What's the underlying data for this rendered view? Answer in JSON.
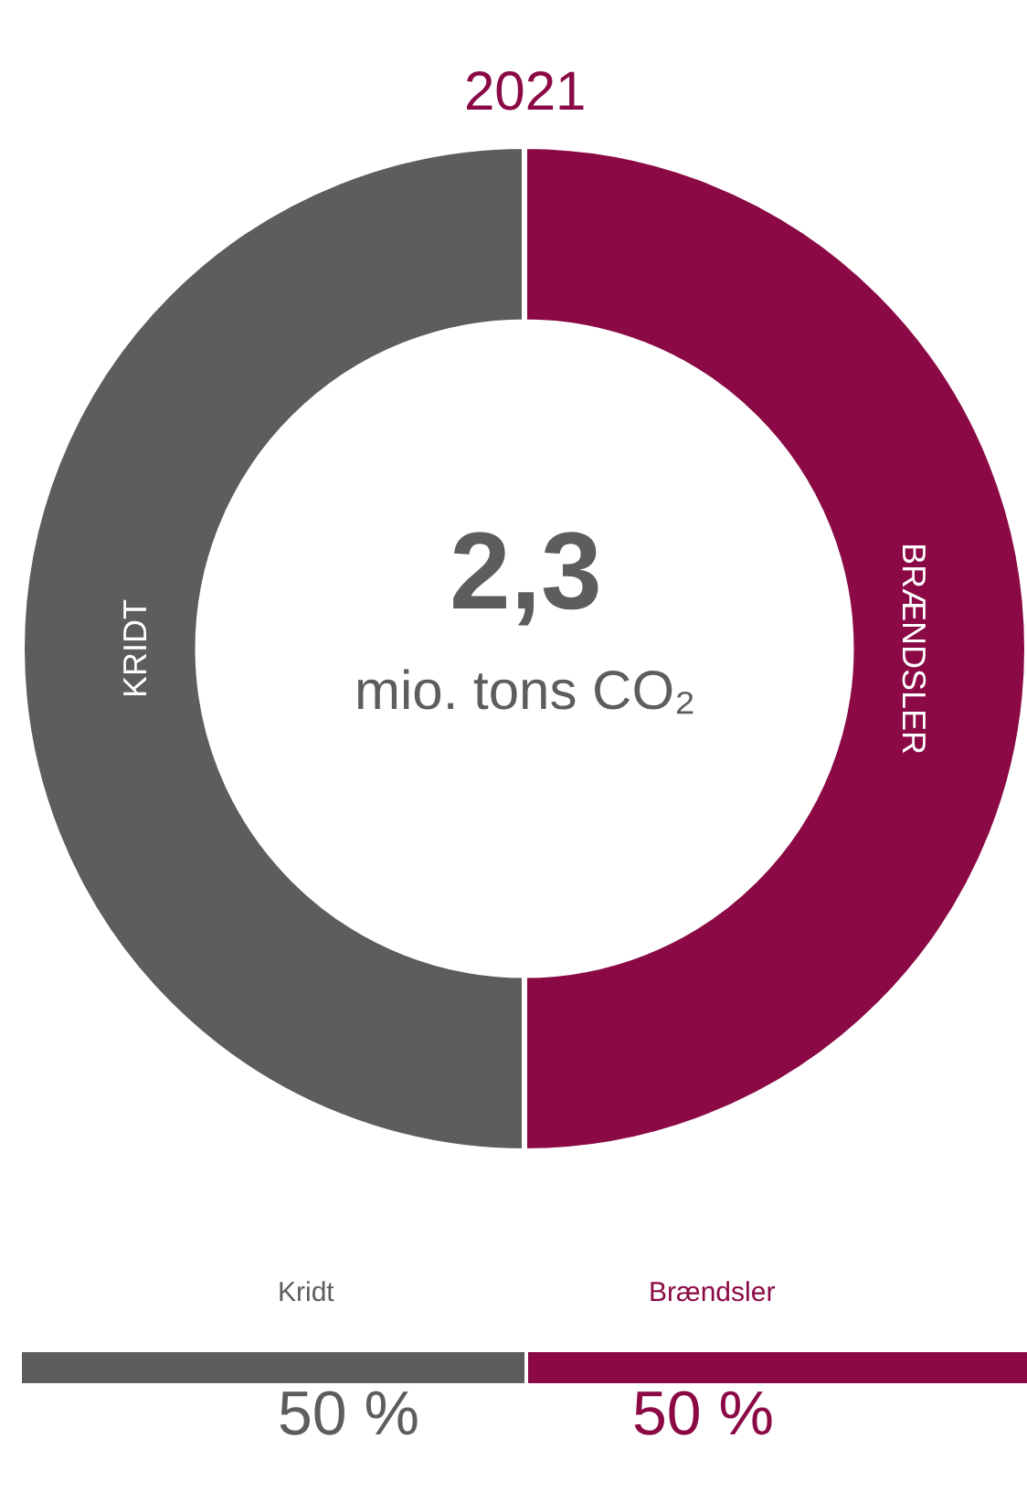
{
  "chart_data": {
    "type": "donut",
    "title": "2021",
    "categories": [
      "Kridt",
      "Brændsler"
    ],
    "values": [
      50,
      50
    ],
    "colors": [
      "#5d5d5b",
      "#8b0a45"
    ],
    "value_labels": [
      "50 %",
      "50 %"
    ],
    "annotations": [
      "2,3",
      "mio. tons CO₂",
      "KRIDT",
      "BRÆNDSLER"
    ],
    "legend": false
  }
}
